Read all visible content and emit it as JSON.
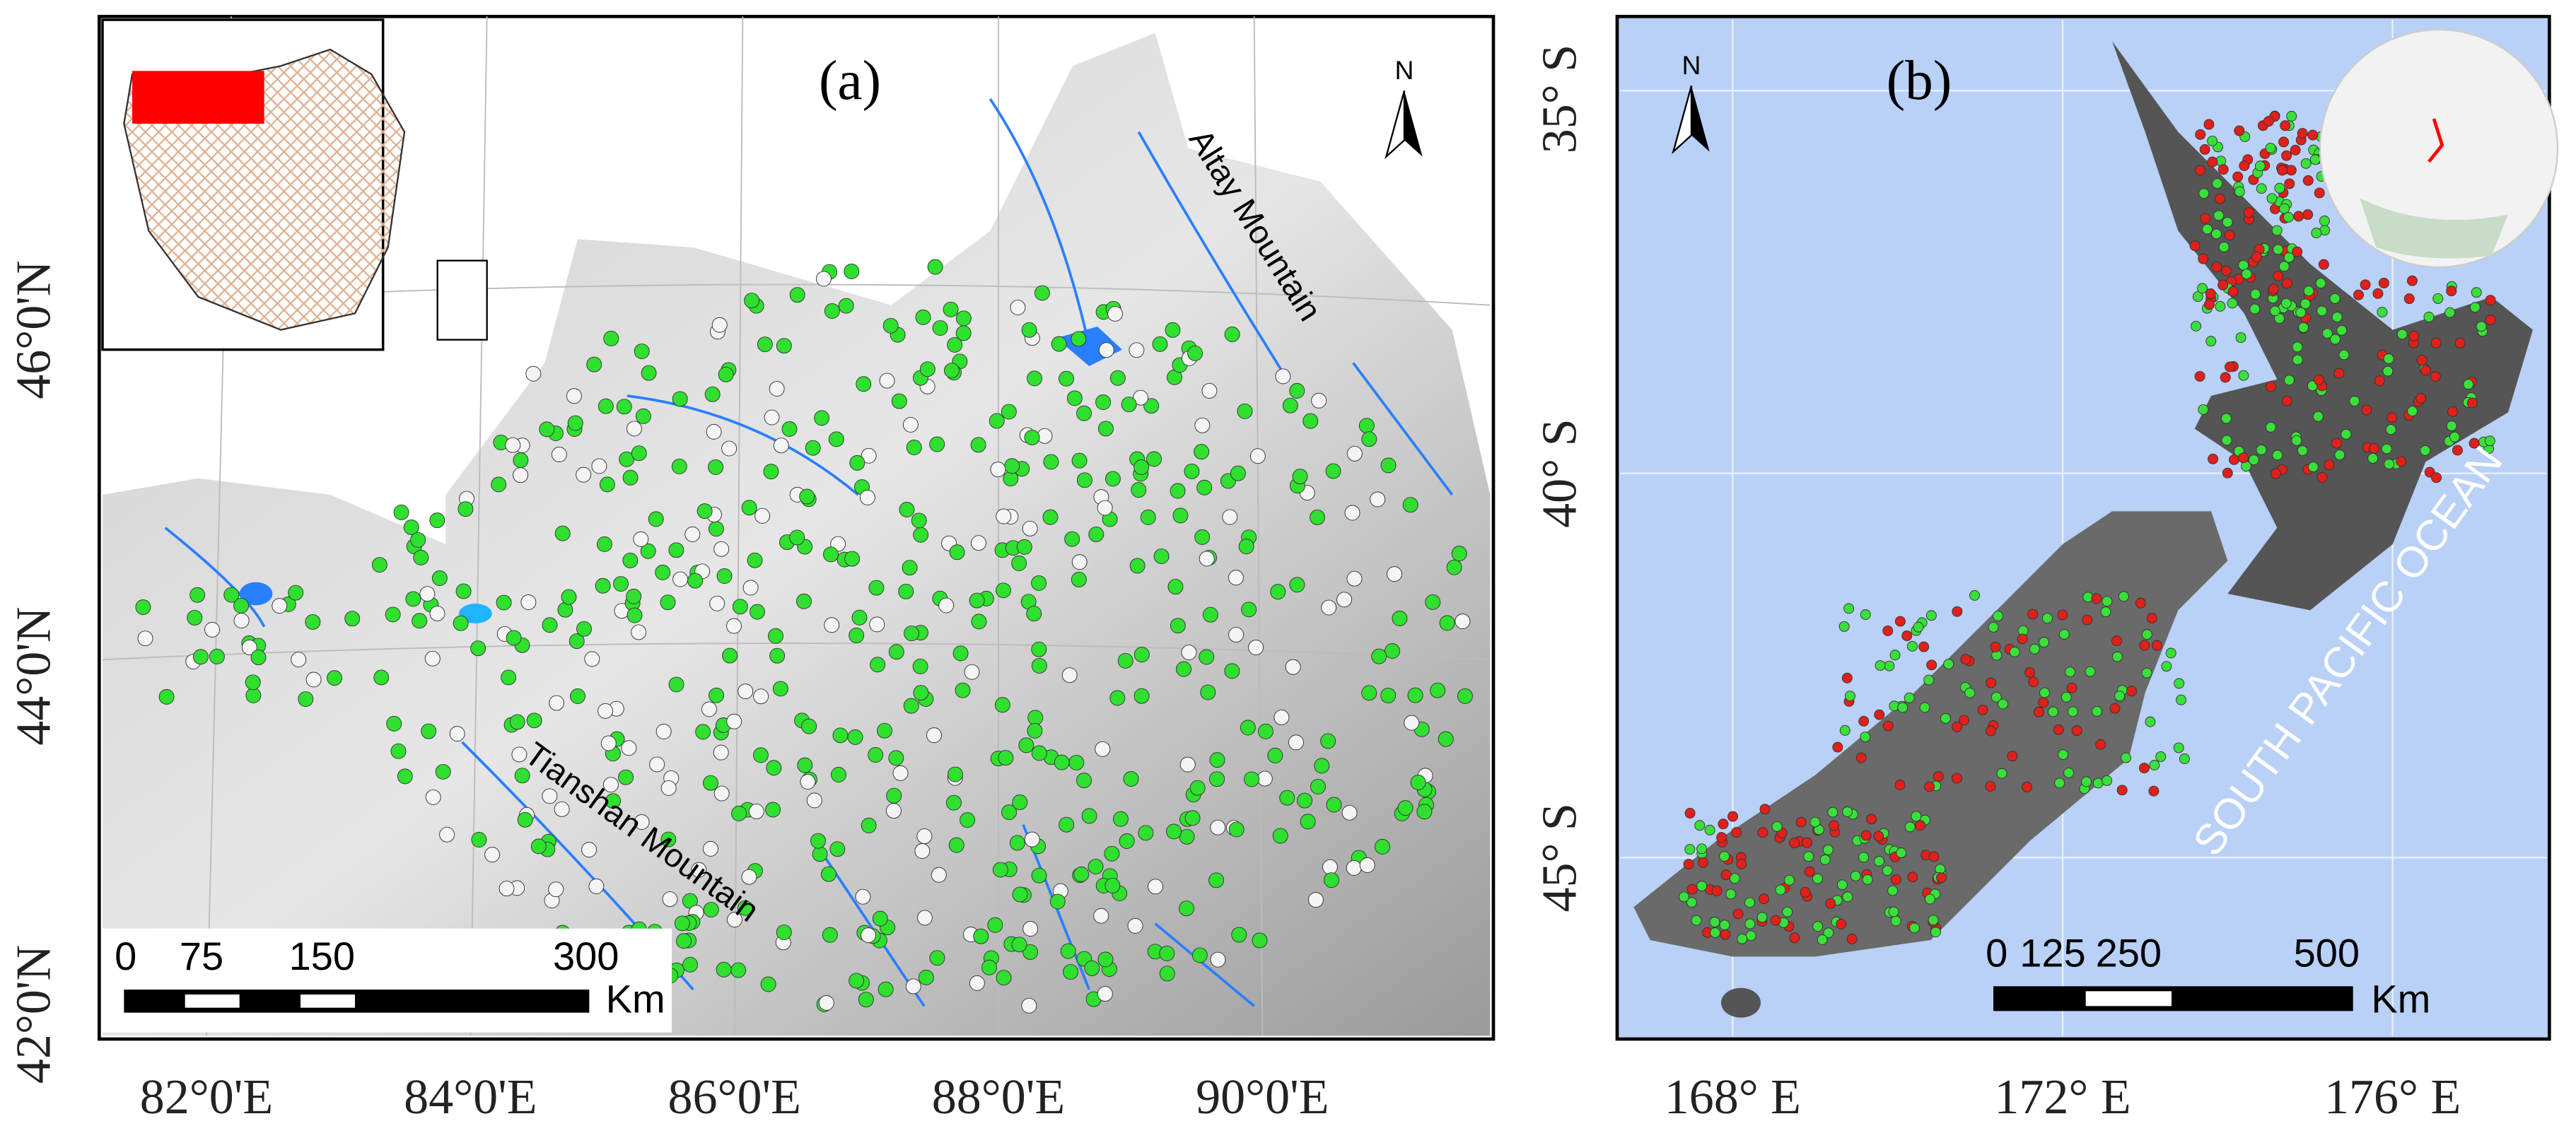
{
  "panels": [
    {
      "label": "(a)",
      "north": "N",
      "annotations": [
        "Altay Mountain",
        "Tianshan Mountain"
      ],
      "lat_labels": [
        "46°0'N",
        "44°0'N",
        "42°0'N"
      ],
      "lon_labels": [
        "82°0'E",
        "84°0'E",
        "86°0'E",
        "88°0'E",
        "90°0'E"
      ],
      "scale_bar": {
        "ticks": [
          "0",
          "75",
          "150",
          "300"
        ],
        "unit": "Km"
      }
    },
    {
      "label": "(b)",
      "north": "N",
      "annotations": [
        "SOUTH PACIFIC OCEAN"
      ],
      "lat_labels": [
        "35° S",
        "40° S",
        "45° S"
      ],
      "lon_labels": [
        "168° E",
        "172° E",
        "176° E"
      ],
      "scale_bar": {
        "ticks": [
          "0",
          "125",
          "250",
          "500"
        ],
        "unit": "Km"
      }
    }
  ]
}
